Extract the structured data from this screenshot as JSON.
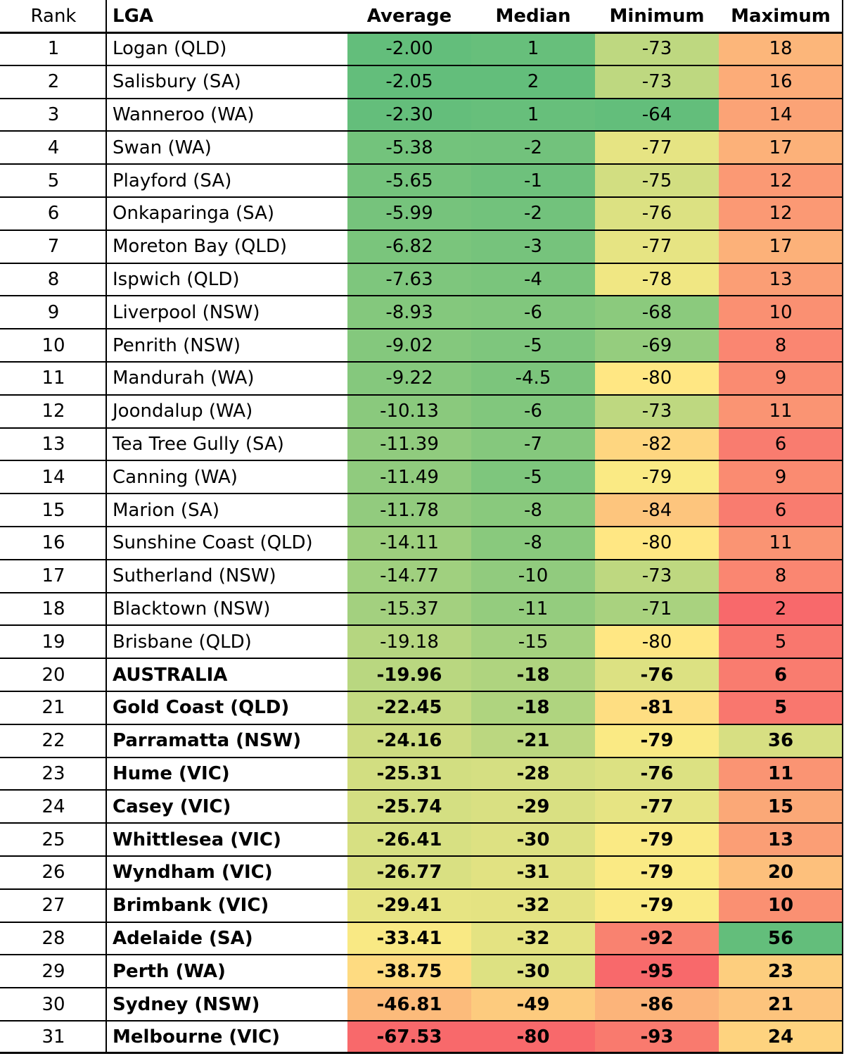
{
  "chart_data": {
    "type": "table",
    "columns": [
      "Rank",
      "LGA",
      "Average",
      "Median",
      "Minimum",
      "Maximum"
    ],
    "rows": [
      {
        "rank": "1",
        "lga": "Logan (QLD)",
        "average": "-2.00",
        "median": "1",
        "minimum": "-73",
        "maximum": "18",
        "bold": false
      },
      {
        "rank": "2",
        "lga": "Salisbury (SA)",
        "average": "-2.05",
        "median": "2",
        "minimum": "-73",
        "maximum": "16",
        "bold": false
      },
      {
        "rank": "3",
        "lga": "Wanneroo (WA)",
        "average": "-2.30",
        "median": "1",
        "minimum": "-64",
        "maximum": "14",
        "bold": false
      },
      {
        "rank": "4",
        "lga": "Swan (WA)",
        "average": "-5.38",
        "median": "-2",
        "minimum": "-77",
        "maximum": "17",
        "bold": false
      },
      {
        "rank": "5",
        "lga": "Playford (SA)",
        "average": "-5.65",
        "median": "-1",
        "minimum": "-75",
        "maximum": "12",
        "bold": false
      },
      {
        "rank": "6",
        "lga": "Onkaparinga (SA)",
        "average": "-5.99",
        "median": "-2",
        "minimum": "-76",
        "maximum": "12",
        "bold": false
      },
      {
        "rank": "7",
        "lga": "Moreton Bay (QLD)",
        "average": "-6.82",
        "median": "-3",
        "minimum": "-77",
        "maximum": "17",
        "bold": false
      },
      {
        "rank": "8",
        "lga": "Ispwich (QLD)",
        "average": "-7.63",
        "median": "-4",
        "minimum": "-78",
        "maximum": "13",
        "bold": false
      },
      {
        "rank": "9",
        "lga": "Liverpool (NSW)",
        "average": "-8.93",
        "median": "-6",
        "minimum": "-68",
        "maximum": "10",
        "bold": false
      },
      {
        "rank": "10",
        "lga": "Penrith (NSW)",
        "average": "-9.02",
        "median": "-5",
        "minimum": "-69",
        "maximum": "8",
        "bold": false
      },
      {
        "rank": "11",
        "lga": "Mandurah (WA)",
        "average": "-9.22",
        "median": "-4.5",
        "minimum": "-80",
        "maximum": "9",
        "bold": false
      },
      {
        "rank": "12",
        "lga": "Joondalup (WA)",
        "average": "-10.13",
        "median": "-6",
        "minimum": "-73",
        "maximum": "11",
        "bold": false
      },
      {
        "rank": "13",
        "lga": "Tea Tree Gully (SA)",
        "average": "-11.39",
        "median": "-7",
        "minimum": "-82",
        "maximum": "6",
        "bold": false
      },
      {
        "rank": "14",
        "lga": "Canning (WA)",
        "average": "-11.49",
        "median": "-5",
        "minimum": "-79",
        "maximum": "9",
        "bold": false
      },
      {
        "rank": "15",
        "lga": "Marion (SA)",
        "average": "-11.78",
        "median": "-8",
        "minimum": "-84",
        "maximum": "6",
        "bold": false
      },
      {
        "rank": "16",
        "lga": "Sunshine Coast (QLD)",
        "average": "-14.11",
        "median": "-8",
        "minimum": "-80",
        "maximum": "11",
        "bold": false
      },
      {
        "rank": "17",
        "lga": "Sutherland (NSW)",
        "average": "-14.77",
        "median": "-10",
        "minimum": "-73",
        "maximum": "8",
        "bold": false
      },
      {
        "rank": "18",
        "lga": "Blacktown (NSW)",
        "average": "-15.37",
        "median": "-11",
        "minimum": "-71",
        "maximum": "2",
        "bold": false
      },
      {
        "rank": "19",
        "lga": "Brisbane (QLD)",
        "average": "-19.18",
        "median": "-15",
        "minimum": "-80",
        "maximum": "5",
        "bold": false
      },
      {
        "rank": "20",
        "lga": "AUSTRALIA",
        "average": "-19.96",
        "median": "-18",
        "minimum": "-76",
        "maximum": "6",
        "bold": true
      },
      {
        "rank": "21",
        "lga": "Gold Coast (QLD)",
        "average": "-22.45",
        "median": "-18",
        "minimum": "-81",
        "maximum": "5",
        "bold": true
      },
      {
        "rank": "22",
        "lga": "Parramatta (NSW)",
        "average": "-24.16",
        "median": "-21",
        "minimum": "-79",
        "maximum": "36",
        "bold": true
      },
      {
        "rank": "23",
        "lga": "Hume (VIC)",
        "average": "-25.31",
        "median": "-28",
        "minimum": "-76",
        "maximum": "11",
        "bold": true
      },
      {
        "rank": "24",
        "lga": "Casey (VIC)",
        "average": "-25.74",
        "median": "-29",
        "minimum": "-77",
        "maximum": "15",
        "bold": true
      },
      {
        "rank": "25",
        "lga": "Whittlesea (VIC)",
        "average": "-26.41",
        "median": "-30",
        "minimum": "-79",
        "maximum": "13",
        "bold": true
      },
      {
        "rank": "26",
        "lga": "Wyndham (VIC)",
        "average": "-26.77",
        "median": "-31",
        "minimum": "-79",
        "maximum": "20",
        "bold": true
      },
      {
        "rank": "27",
        "lga": "Brimbank (VIC)",
        "average": "-29.41",
        "median": "-32",
        "minimum": "-79",
        "maximum": "10",
        "bold": true
      },
      {
        "rank": "28",
        "lga": "Adelaide (SA)",
        "average": "-33.41",
        "median": "-32",
        "minimum": "-92",
        "maximum": "56",
        "bold": true
      },
      {
        "rank": "29",
        "lga": "Perth (WA)",
        "average": "-38.75",
        "median": "-30",
        "minimum": "-95",
        "maximum": "23",
        "bold": true
      },
      {
        "rank": "30",
        "lga": "Sydney (NSW)",
        "average": "-46.81",
        "median": "-49",
        "minimum": "-86",
        "maximum": "21",
        "bold": true
      },
      {
        "rank": "31",
        "lga": "Melbourne (VIC)",
        "average": "-67.53",
        "median": "-80",
        "minimum": "-93",
        "maximum": "24",
        "bold": true
      }
    ],
    "color_scale": {
      "high": "#63be7b",
      "mid": "#ffeb84",
      "low": "#f8696b"
    }
  }
}
